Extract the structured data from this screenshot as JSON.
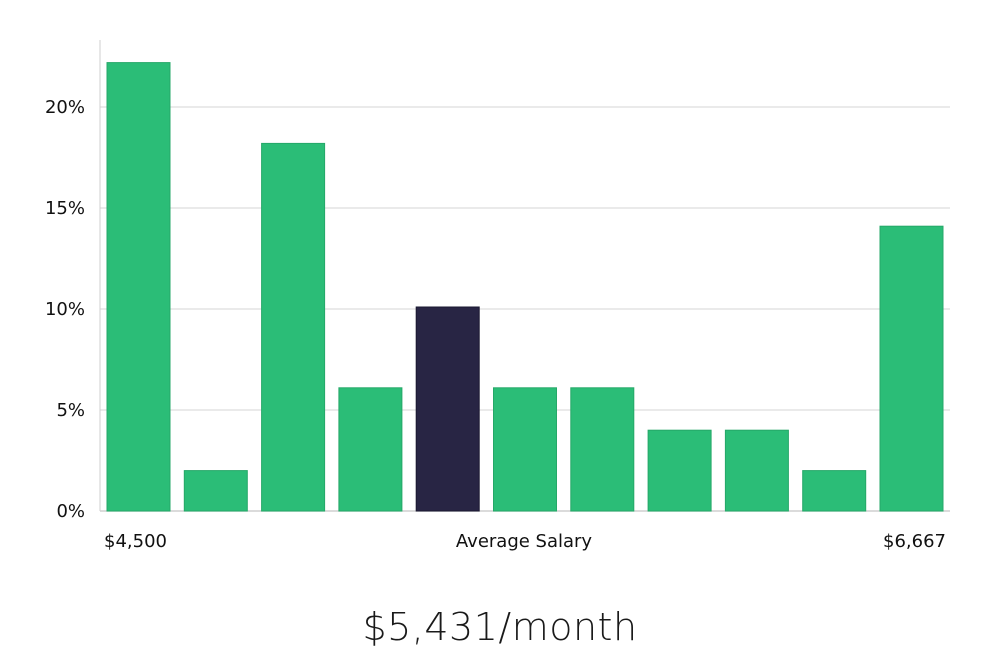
{
  "chart_data": {
    "type": "bar",
    "values": [
      22.2,
      2.0,
      18.2,
      6.1,
      10.1,
      6.1,
      6.1,
      4.0,
      4.0,
      2.0,
      14.1
    ],
    "highlight_index": 4,
    "ylim": [
      0,
      23
    ],
    "yticks": [
      0,
      5,
      10,
      15,
      20
    ],
    "ytick_labels": [
      "0%",
      "5%",
      "10%",
      "15%",
      "20%"
    ],
    "x_min_label": "$4,500",
    "x_max_label": "$6,667",
    "xlabel": "Average Salary",
    "grid": true,
    "colors": {
      "bar": "#2bbd77",
      "highlight": "#282544",
      "grid": "#e3e3e3",
      "axis": "#cfcfcf"
    }
  },
  "summary": {
    "salary_text": "$5,431/month"
  }
}
